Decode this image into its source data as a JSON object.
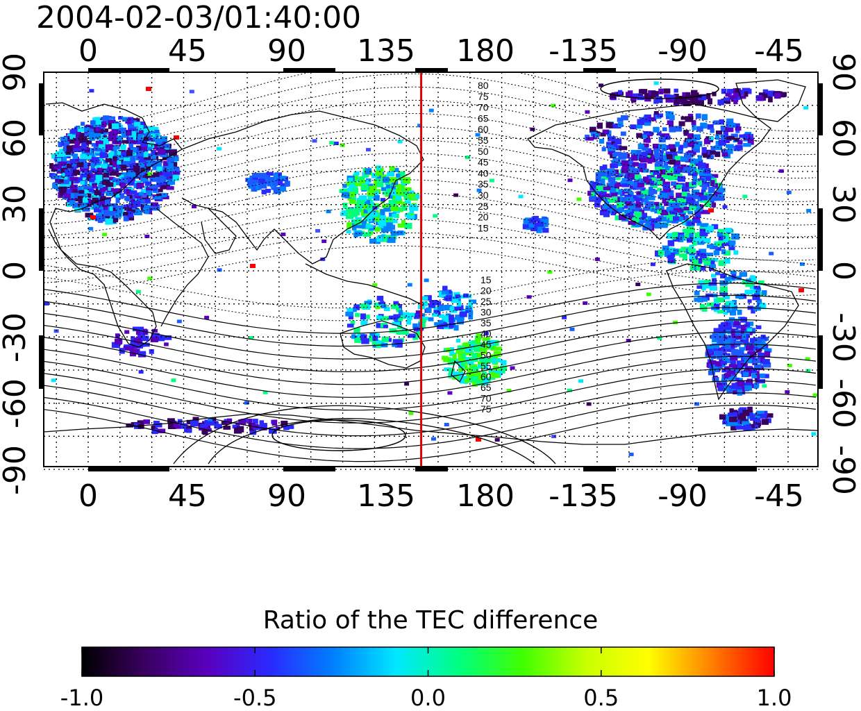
{
  "title": "2004-02-03/01:40:00",
  "map": {
    "top_lon_ticks": [
      "0",
      "45",
      "90",
      "135",
      "180",
      "-135",
      "-90",
      "-45"
    ],
    "bottom_lon_ticks": [
      "0",
      "45",
      "90",
      "135",
      "180",
      "-135",
      "-90",
      "-45"
    ],
    "left_lat_ticks": [
      "90",
      "60",
      "30",
      "0",
      "-30",
      "-60",
      "-90"
    ],
    "right_lat_ticks": [
      "90",
      "60",
      "30",
      "0",
      "-30",
      "-60",
      "-90"
    ],
    "grid": "dotted, every 15 degrees",
    "meridian_marker": {
      "lon": 157,
      "color": "#e00000"
    },
    "contour_labels_north": [
      "80",
      "75",
      "70",
      "65",
      "60",
      "55",
      "50",
      "45",
      "40",
      "35",
      "30",
      "25",
      "20",
      "15"
    ],
    "contour_labels_south": [
      "15",
      "20",
      "25",
      "30",
      "35",
      "40",
      "45",
      "50",
      "55",
      "60",
      "65",
      "70",
      "75"
    ]
  },
  "colorbar": {
    "title": "Ratio of the TEC difference",
    "min": -1.0,
    "max": 1.0,
    "tick_labels": [
      "-1.0",
      "-0.5",
      "0.0",
      "0.5",
      "1.0"
    ],
    "colors": [
      "#000000",
      "#3a0060",
      "#5a00c0",
      "#2a2aff",
      "#0080ff",
      "#00e8ff",
      "#00ff80",
      "#40ff00",
      "#c8ff00",
      "#ffff00",
      "#ff8000",
      "#ff0000"
    ]
  },
  "colors": {
    "meridian": "#e00000"
  }
}
